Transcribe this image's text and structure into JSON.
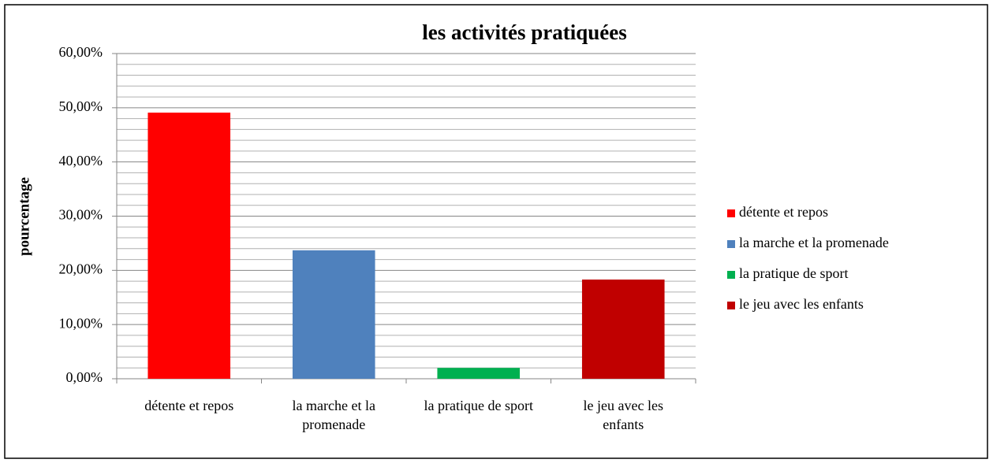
{
  "chart_data": {
    "type": "bar",
    "title": "les activités pratiquées",
    "y_label": "pourcentage",
    "categories": [
      "détente et repos",
      "la marche et la promenade",
      "la pratique de sport",
      "le jeu avec les enfants"
    ],
    "values": [
      49.1,
      23.7,
      2.0,
      18.3
    ],
    "colors": [
      "#ff0000",
      "#4f81bd",
      "#00b050",
      "#c00000"
    ],
    "ylim": [
      0,
      60
    ],
    "yticks": [
      {
        "value": 0,
        "label": "0,00%"
      },
      {
        "value": 10,
        "label": "10,00%"
      },
      {
        "value": 20,
        "label": "20,00%"
      },
      {
        "value": 30,
        "label": "30,00%"
      },
      {
        "value": 40,
        "label": "40,00%"
      },
      {
        "value": 50,
        "label": "50,00%"
      },
      {
        "value": 60,
        "label": "60,00%"
      }
    ],
    "grid": true,
    "minor_grid": true,
    "legend": "right"
  }
}
